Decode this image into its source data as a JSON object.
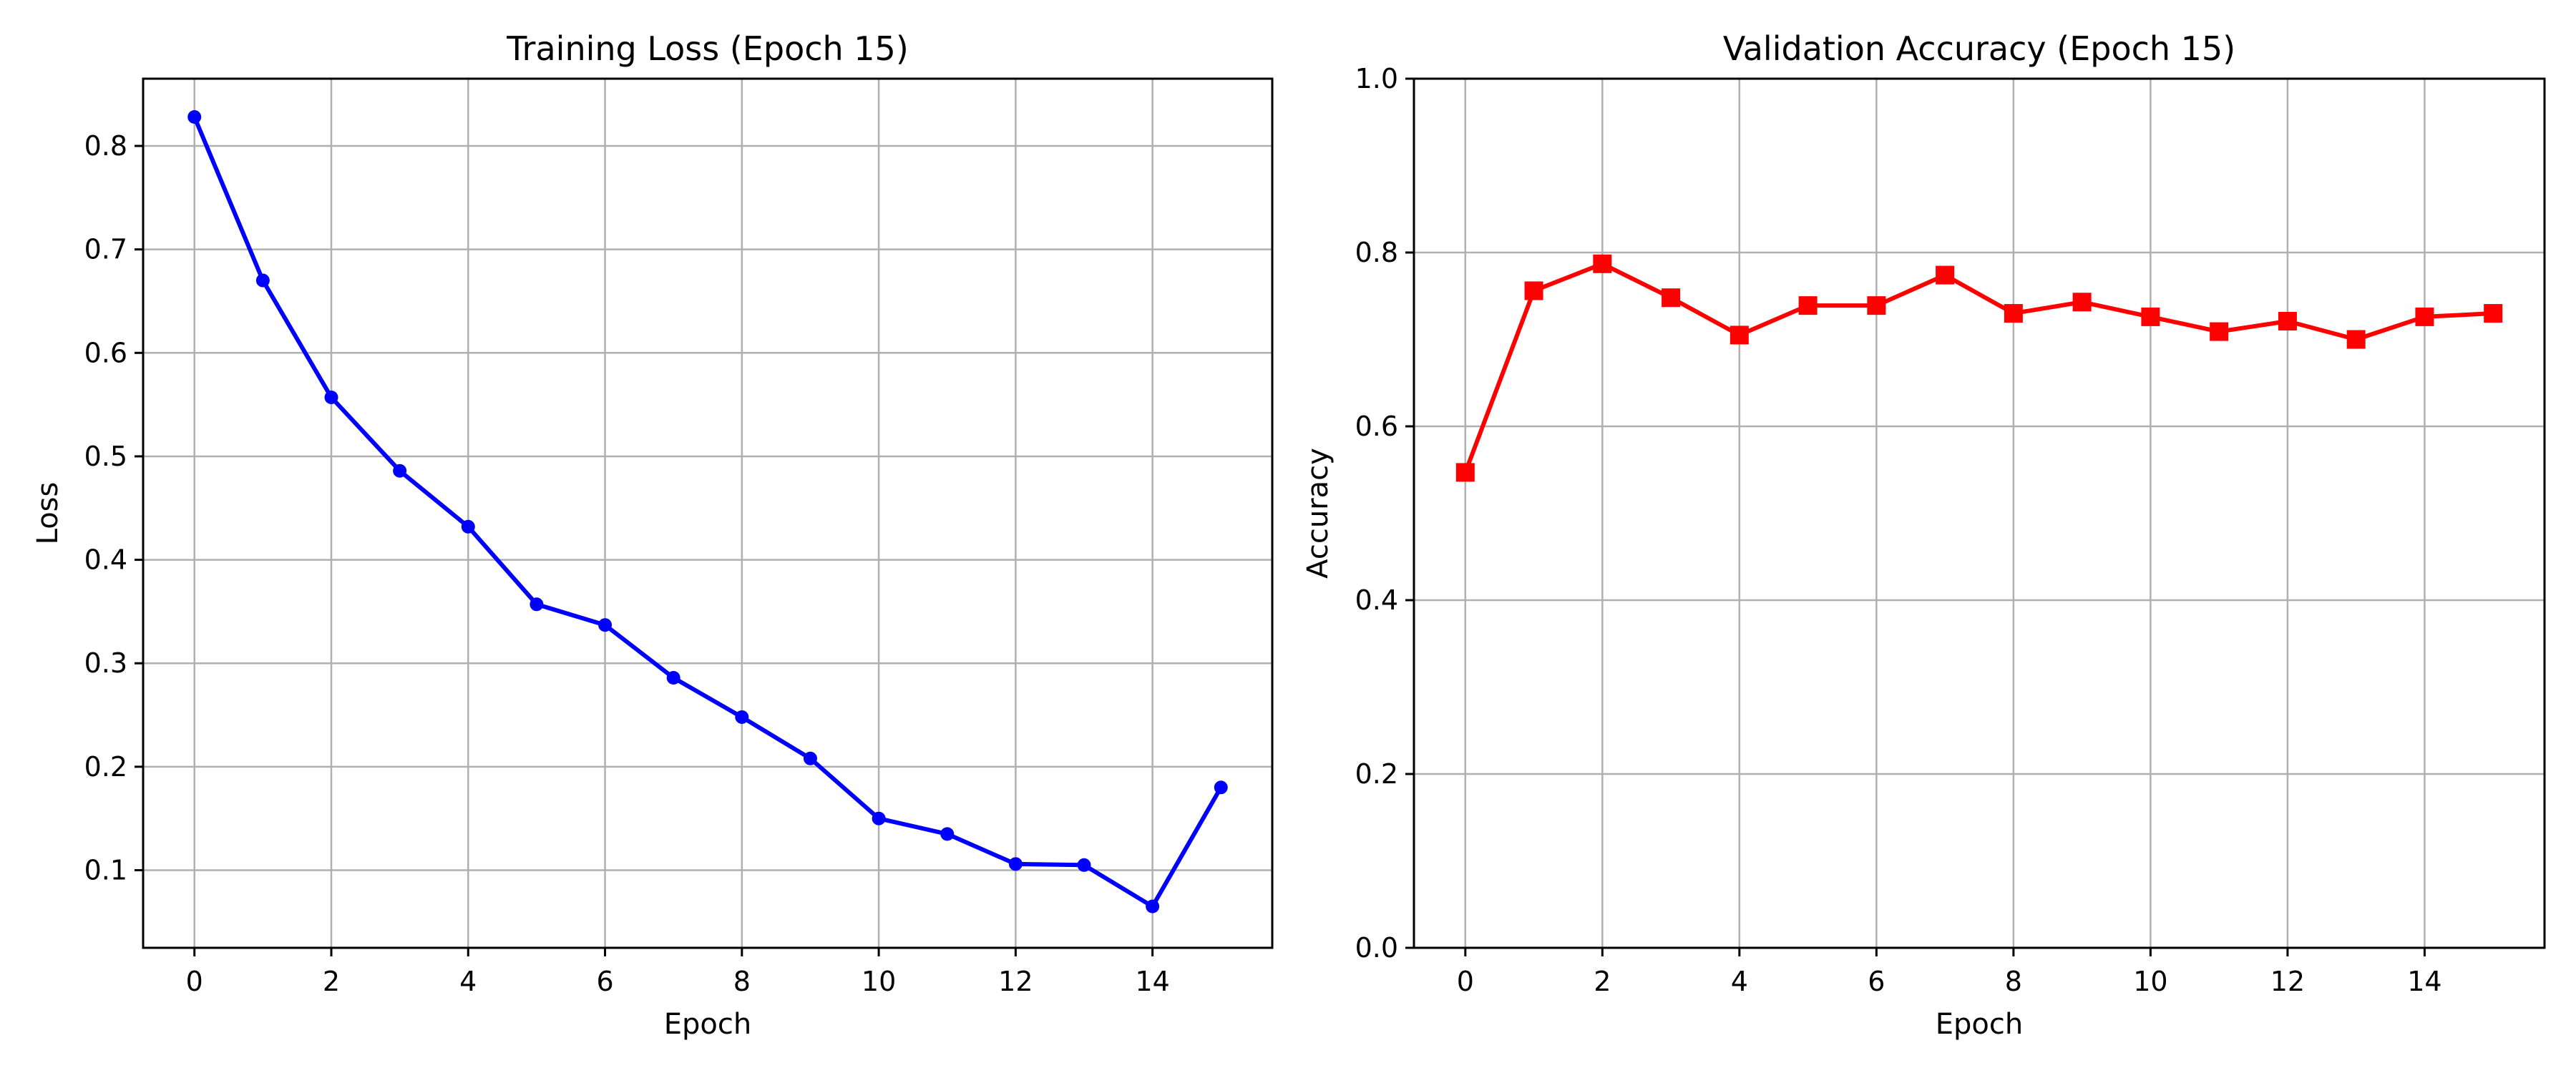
{
  "chart_data": [
    {
      "type": "line",
      "title": "Training Loss (Epoch 15)",
      "xlabel": "Epoch",
      "ylabel": "Loss",
      "xlim": [
        -0.75,
        15.75
      ],
      "ylim": [
        0.025,
        0.865
      ],
      "xticks": [
        0,
        2,
        4,
        6,
        8,
        10,
        12,
        14
      ],
      "yticks": [
        0.1,
        0.2,
        0.3,
        0.4,
        0.5,
        0.6,
        0.7,
        0.8
      ],
      "grid": true,
      "legend": "none",
      "series": [
        {
          "color": "#0000ff",
          "marker": "circle",
          "x": [
            0,
            1,
            2,
            3,
            4,
            5,
            6,
            7,
            8,
            9,
            10,
            11,
            12,
            13,
            14,
            15
          ],
          "values": [
            0.828,
            0.67,
            0.557,
            0.486,
            0.432,
            0.357,
            0.337,
            0.286,
            0.248,
            0.208,
            0.15,
            0.135,
            0.106,
            0.105,
            0.065,
            0.18
          ]
        }
      ]
    },
    {
      "type": "line",
      "title": "Validation Accuracy (Epoch 15)",
      "xlabel": "Epoch",
      "ylabel": "Accuracy",
      "xlim": [
        -0.75,
        15.75
      ],
      "ylim": [
        0.0,
        1.0
      ],
      "xticks": [
        0,
        2,
        4,
        6,
        8,
        10,
        12,
        14
      ],
      "yticks": [
        0.0,
        0.2,
        0.4,
        0.6,
        0.8,
        1.0
      ],
      "grid": true,
      "legend": "none",
      "series": [
        {
          "color": "#ff0000",
          "marker": "square",
          "x": [
            0,
            1,
            2,
            3,
            4,
            5,
            6,
            7,
            8,
            9,
            10,
            11,
            12,
            13,
            14,
            15
          ],
          "values": [
            0.547,
            0.756,
            0.787,
            0.748,
            0.705,
            0.739,
            0.739,
            0.774,
            0.73,
            0.743,
            0.726,
            0.709,
            0.721,
            0.7,
            0.726,
            0.73
          ]
        }
      ]
    }
  ]
}
